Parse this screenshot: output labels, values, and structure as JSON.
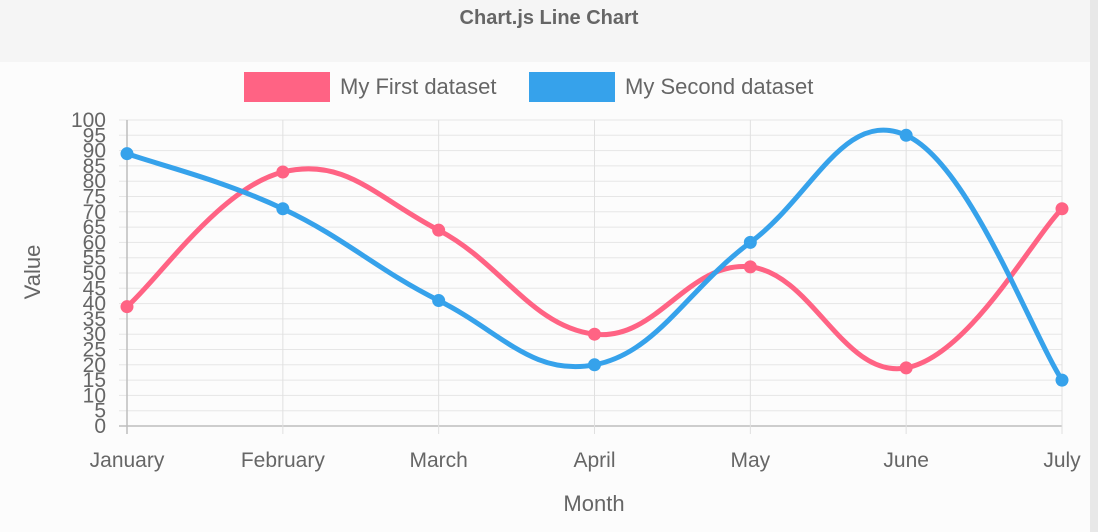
{
  "page": {
    "title": "Chart.js Line Chart"
  },
  "chart_data": {
    "type": "line",
    "categories": [
      "January",
      "February",
      "March",
      "April",
      "May",
      "June",
      "July"
    ],
    "series": [
      {
        "name": "My First dataset",
        "color": "#ff6384",
        "values": [
          39,
          83,
          64,
          30,
          52,
          19,
          71
        ]
      },
      {
        "name": "My Second dataset",
        "color": "#36a2eb",
        "values": [
          89,
          71,
          41,
          20,
          60,
          95,
          15
        ]
      }
    ],
    "xlabel": "Month",
    "ylabel": "Value",
    "ylim": [
      0,
      100
    ],
    "yticks": [
      "0",
      "5",
      "10",
      "15",
      "20",
      "25",
      "30",
      "35",
      "40",
      "45",
      "50",
      "55",
      "60",
      "65",
      "70",
      "75",
      "80",
      "85",
      "90",
      "95",
      "100"
    ],
    "grid": true,
    "legend": "top-center"
  }
}
